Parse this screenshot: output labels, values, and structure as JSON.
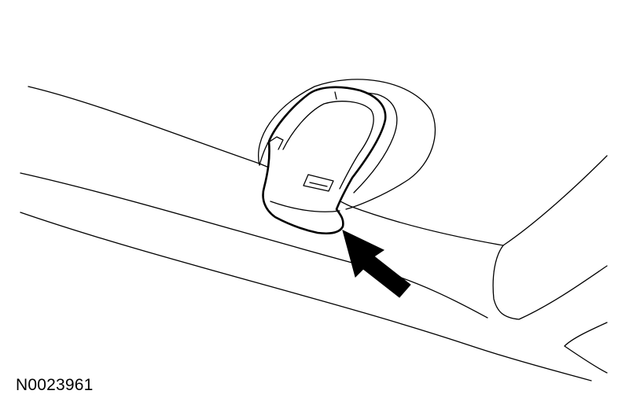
{
  "figure": {
    "reference_code": "N0023961",
    "arrow_color": "#000000",
    "line_color": "#000000",
    "background": "#ffffff"
  }
}
